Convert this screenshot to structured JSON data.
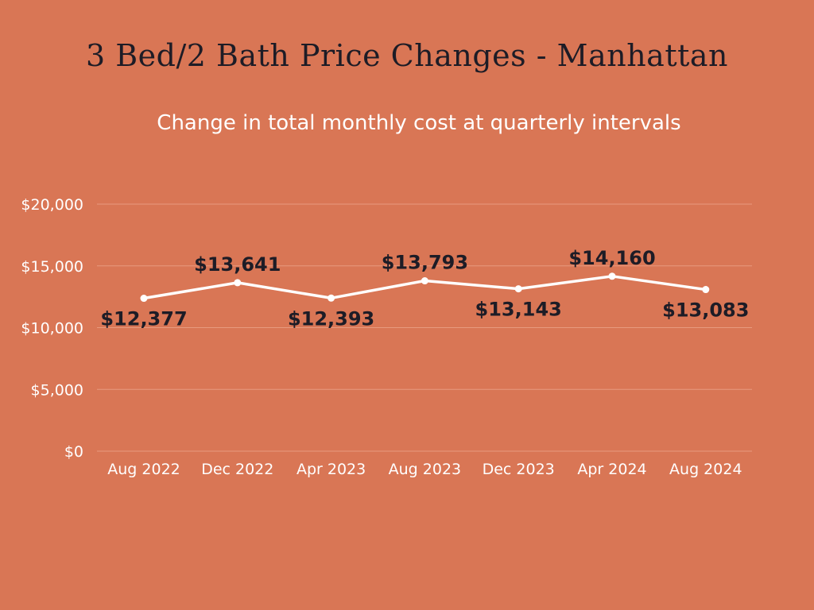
{
  "title": "3 Bed/2 Bath Price Changes - Manhattan",
  "subtitle": "Change in total monthly cost at quarterly intervals",
  "colors": {
    "background": "#d97655",
    "line": "#ffffff",
    "gridline": "#e89a7f",
    "label": "#1d1c26",
    "tick": "#ffffff"
  },
  "chart_data": {
    "type": "line",
    "categories": [
      "Aug 2022",
      "Dec 2022",
      "Apr 2023",
      "Aug 2023",
      "Dec 2023",
      "Apr 2024",
      "Aug 2024"
    ],
    "series": [
      {
        "values": [
          12377,
          13641,
          12393,
          13793,
          13143,
          14160,
          13083
        ],
        "labels": [
          "$12,377",
          "$13,641",
          "$12,393",
          "$13,793",
          "$13,143",
          "$14,160",
          "$13,083"
        ],
        "label_positions": [
          "below",
          "above",
          "below",
          "above",
          "below",
          "above",
          "below"
        ]
      }
    ],
    "yticks": [
      0,
      5000,
      10000,
      15000,
      20000
    ],
    "ytick_labels": [
      "$0",
      "$5,000",
      "$10,000",
      "$15,000",
      "$20,000"
    ],
    "ylim": [
      0,
      20000
    ],
    "grid": true,
    "legend": false,
    "xlabel": "",
    "ylabel": ""
  }
}
